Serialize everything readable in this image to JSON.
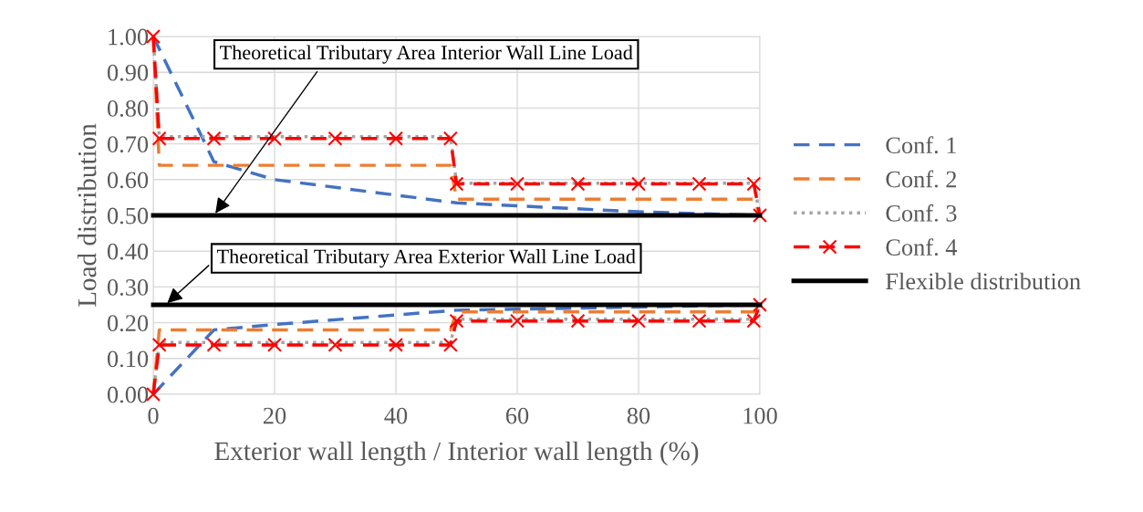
{
  "chart_data": {
    "type": "line",
    "xlabel": "Exterior wall length / Interior wall length (%)",
    "ylabel": "Load distribution",
    "xlim": [
      0,
      100
    ],
    "xticks": [
      0,
      20,
      40,
      60,
      80,
      100
    ],
    "ylim": [
      0,
      1
    ],
    "yticks": [
      {
        "value": 0,
        "label": "0.00"
      },
      {
        "value": 0.1,
        "label": "0.10"
      },
      {
        "value": 0.2,
        "label": "0.20"
      },
      {
        "value": 0.3,
        "label": "0.30"
      },
      {
        "value": 0.4,
        "label": "0.40"
      },
      {
        "value": 0.5,
        "label": "0.50"
      },
      {
        "value": 0.6,
        "label": "0.60"
      },
      {
        "value": 0.7,
        "label": "0.70"
      },
      {
        "value": 0.8,
        "label": "0.80"
      },
      {
        "value": 0.9,
        "label": "0.90"
      },
      {
        "value": 1,
        "label": "1.00"
      }
    ],
    "grid": true,
    "legend": "right",
    "series": [
      {
        "name": "Conf. 1",
        "color": "#4472c4",
        "line_style": "dashed",
        "marker": "none",
        "x": [
          0,
          10,
          20,
          50,
          80,
          100
        ],
        "values": [
          1.0,
          0.65,
          0.6,
          0.535,
          0.51,
          0.5
        ]
      },
      {
        "color": "#4472c4",
        "line_style": "dashed",
        "marker": "none",
        "x": [
          0,
          10,
          20,
          50,
          100
        ],
        "values": [
          0.0,
          0.18,
          0.195,
          0.235,
          0.25
        ]
      },
      {
        "name": "Conf. 2",
        "color": "#ed7d31",
        "line_style": "dashed",
        "marker": "none",
        "x": [
          0,
          1,
          49,
          50,
          99,
          100
        ],
        "values": [
          1.0,
          0.64,
          0.64,
          0.545,
          0.545,
          0.5
        ]
      },
      {
        "color": "#ed7d31",
        "line_style": "dashed",
        "marker": "none",
        "x": [
          0,
          1,
          49,
          50,
          99,
          100
        ],
        "values": [
          0.0,
          0.18,
          0.18,
          0.23,
          0.23,
          0.25
        ]
      },
      {
        "name": "Conf. 3",
        "color": "#a5a5a5",
        "line_style": "dotted",
        "marker": "none",
        "x": [
          0,
          1,
          49,
          50,
          99,
          100
        ],
        "values": [
          1.0,
          0.72,
          0.72,
          0.59,
          0.59,
          0.5
        ]
      },
      {
        "color": "#a5a5a5",
        "line_style": "dotted",
        "marker": "none",
        "x": [
          0,
          1,
          49,
          50,
          99,
          100
        ],
        "values": [
          0.0,
          0.145,
          0.145,
          0.21,
          0.21,
          0.25
        ]
      },
      {
        "name": "Conf. 4",
        "color": "#ff0000",
        "line_style": "dashed",
        "marker": "cross",
        "x": [
          0,
          1,
          10,
          20,
          30,
          40,
          49,
          50,
          60,
          70,
          80,
          90,
          99,
          100
        ],
        "values": [
          1.0,
          0.715,
          0.715,
          0.715,
          0.715,
          0.715,
          0.715,
          0.588,
          0.588,
          0.588,
          0.588,
          0.588,
          0.588,
          0.5
        ]
      },
      {
        "color": "#ff0000",
        "line_style": "dashed",
        "marker": "cross",
        "x": [
          0,
          1,
          10,
          20,
          30,
          40,
          49,
          50,
          60,
          70,
          80,
          90,
          99,
          100
        ],
        "values": [
          0.0,
          0.138,
          0.138,
          0.138,
          0.138,
          0.138,
          0.138,
          0.205,
          0.205,
          0.205,
          0.205,
          0.205,
          0.205,
          0.25
        ]
      },
      {
        "name": "Flexible distribution",
        "color": "#000000",
        "line_style": "solid",
        "marker": "none",
        "x": [
          0,
          100
        ],
        "values": [
          0.5,
          0.5
        ]
      },
      {
        "color": "#000000",
        "line_style": "solid",
        "marker": "none",
        "x": [
          0,
          100
        ],
        "values": [
          0.25,
          0.25
        ]
      }
    ],
    "annotations": [
      {
        "text": "Theoretical Tributary Area Interior Wall Line Load",
        "x": 10,
        "y": 0.5
      },
      {
        "text": "Theoretical Tributary Area Exterior Wall Line Load",
        "x": 2,
        "y": 0.25
      }
    ]
  }
}
